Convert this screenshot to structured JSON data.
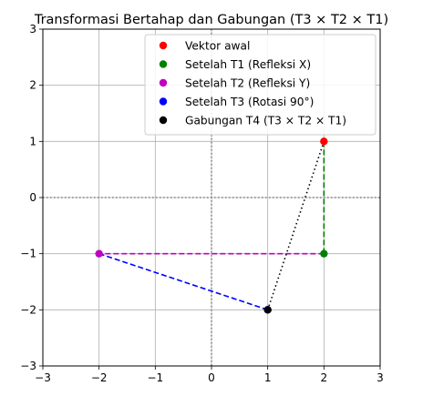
{
  "chart_data": {
    "type": "scatter",
    "title": "Transformasi Bertahap dan Gabungan (T3 × T2 × T1)",
    "xlabel": "",
    "ylabel": "",
    "xlim": [
      -3,
      3
    ],
    "ylim": [
      -3,
      3
    ],
    "xticks": [
      -3,
      -2,
      -1,
      0,
      1,
      2,
      3
    ],
    "yticks": [
      -3,
      -2,
      -1,
      0,
      1,
      2,
      3
    ],
    "xtick_labels": [
      "−3",
      "−2",
      "−1",
      "0",
      "1",
      "2",
      "3"
    ],
    "ytick_labels": [
      "−3",
      "−2",
      "−1",
      "0",
      "1",
      "2",
      "3"
    ],
    "grid": true,
    "legend_position": "top-right",
    "series": [
      {
        "name": "Vektor awal",
        "color": "#ff0000",
        "x": 2,
        "y": 1
      },
      {
        "name": "Setelah T1 (Refleksi X)",
        "color": "#008000",
        "x": 2,
        "y": -1
      },
      {
        "name": "Setelah T2 (Refleksi Y)",
        "color": "#bf00bf",
        "x": -2,
        "y": -1
      },
      {
        "name": "Setelah T3 (Rotasi 90°)",
        "color": "#0000ff",
        "x": 1,
        "y": -2
      },
      {
        "name": "Gabungan T4 (T3 × T2 × T1)",
        "color": "#000000",
        "x": 1,
        "y": -2
      }
    ],
    "connectors": [
      {
        "from": [
          2,
          1
        ],
        "to": [
          2,
          -1
        ],
        "color": "#008000",
        "style": "dashed"
      },
      {
        "from": [
          2,
          -1
        ],
        "to": [
          -2,
          -1
        ],
        "color": "#bf00bf",
        "style": "dashed"
      },
      {
        "from": [
          -2,
          -1
        ],
        "to": [
          1,
          -2
        ],
        "color": "#0000ff",
        "style": "dashed"
      },
      {
        "from": [
          2,
          1
        ],
        "to": [
          1,
          -2
        ],
        "color": "#000000",
        "style": "dotted"
      }
    ],
    "reference_lines": [
      {
        "axis": "x",
        "value": 0,
        "color": "#808080",
        "style": "dotted"
      },
      {
        "axis": "y",
        "value": 0,
        "color": "#808080",
        "style": "dotted"
      }
    ]
  }
}
